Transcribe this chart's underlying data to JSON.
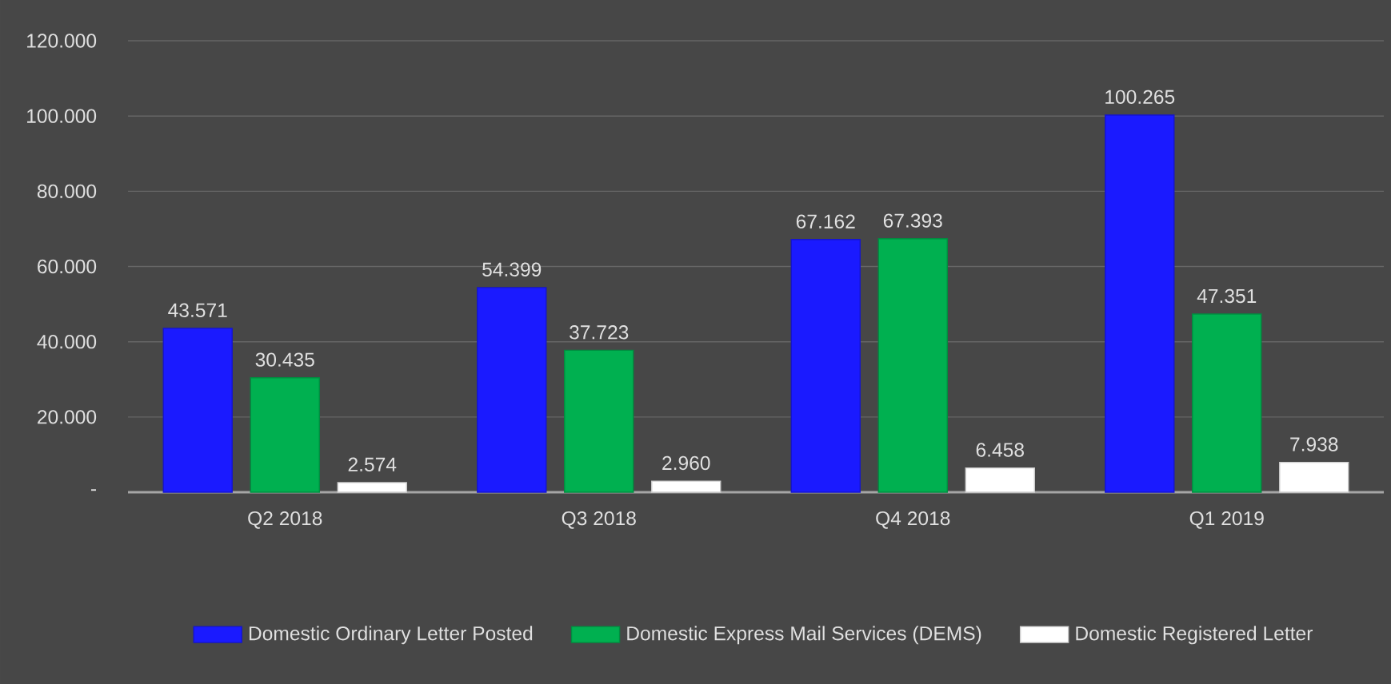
{
  "chart_data": {
    "type": "bar",
    "categories": [
      "Q2 2018",
      "Q3 2018",
      "Q4 2018",
      "Q1 2019"
    ],
    "series": [
      {
        "name": "Domestic Ordinary Letter Posted",
        "color": "#1a1aff",
        "values": [
          43571,
          54399,
          67162,
          100265
        ],
        "value_labels": [
          "43.571",
          "54.399",
          "67.162",
          "100.265"
        ]
      },
      {
        "name": "Domestic Express Mail Services (DEMS)",
        "color": "#00b050",
        "values": [
          30435,
          37723,
          67393,
          47351
        ],
        "value_labels": [
          "30.435",
          "37.723",
          "67.393",
          "47.351"
        ]
      },
      {
        "name": "Domestic Registered Letter",
        "color": "#ffffff",
        "values": [
          2574,
          2960,
          6458,
          7938
        ],
        "value_labels": [
          "2.574",
          "2.960",
          "6.458",
          "7.938"
        ]
      }
    ],
    "ylim": [
      0,
      120000
    ],
    "yticks": [
      {
        "value": 0,
        "label": "-"
      },
      {
        "value": 20000,
        "label": "20.000"
      },
      {
        "value": 40000,
        "label": "40.000"
      },
      {
        "value": 60000,
        "label": "60.000"
      },
      {
        "value": 80000,
        "label": "80.000"
      },
      {
        "value": 100000,
        "label": "100.000"
      },
      {
        "value": 120000,
        "label": "120.000"
      }
    ],
    "grid": "y",
    "legend": "bottom"
  }
}
